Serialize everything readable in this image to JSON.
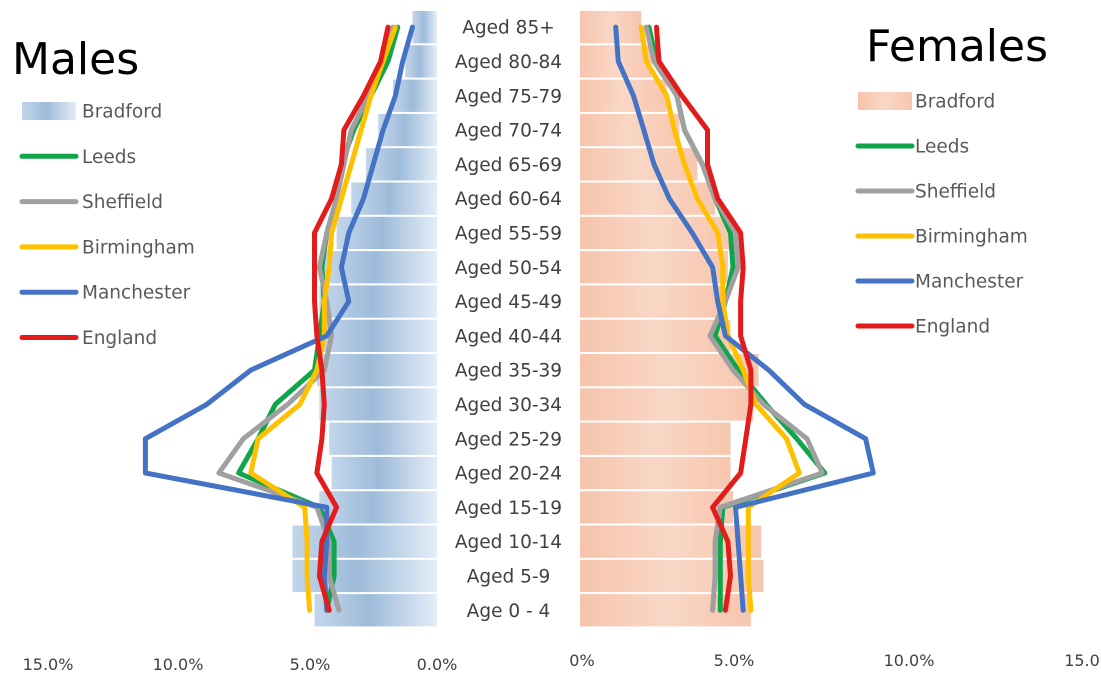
{
  "chart_data": {
    "type": "population-pyramid",
    "left_title": "Males",
    "right_title": "Females",
    "age_groups": [
      "Aged 85+",
      "Aged 80-84",
      "Aged 75-79",
      "Aged 70-74",
      "Aged 65-69",
      "Aged 60-64",
      "Aged 55-59",
      "Aged 50-54",
      "Aged 45-49",
      "Aged 40-44",
      "Aged 35-39",
      "Aged 30-34",
      "Aged 25-29",
      "Aged 20-24",
      "Aged 15-19",
      "Aged 10-14",
      "Aged 5-9",
      "Age 0 - 4"
    ],
    "left_axis": {
      "min": 0,
      "max": 15,
      "ticks": [
        "15.0%",
        "10.0%",
        "5.0%",
        "0.0%"
      ],
      "tick_values": [
        15,
        10,
        5,
        0
      ]
    },
    "right_axis": {
      "min": 0,
      "max": 15,
      "ticks": [
        "0%",
        "5.0%",
        "10.0%",
        "15.0"
      ],
      "tick_values": [
        0,
        5,
        10,
        15
      ]
    },
    "bars": {
      "name": "Bradford",
      "males": [
        1.0,
        1.3,
        1.8,
        2.4,
        2.9,
        3.5,
        4.1,
        4.6,
        4.8,
        4.8,
        4.9,
        4.8,
        4.4,
        4.3,
        4.8,
        5.9,
        5.9,
        5.0
      ],
      "females": [
        2.4,
        2.8,
        3.4,
        3.9,
        4.6,
        5.3,
        5.9,
        5.8,
        5.6,
        5.9,
        7.0,
        6.8,
        5.9,
        5.9,
        6.0,
        7.1,
        7.2,
        6.7
      ]
    },
    "series": [
      {
        "name": "Leeds",
        "color": "#10a54a",
        "males": [
          1.6,
          2.0,
          2.7,
          3.4,
          3.9,
          4.1,
          4.5,
          4.7,
          4.6,
          4.8,
          5.0,
          6.6,
          7.3,
          8.1,
          4.8,
          4.2,
          4.2,
          4.5
        ],
        "females": [
          2.7,
          3.0,
          3.8,
          4.1,
          4.8,
          5.3,
          5.9,
          6.0,
          5.7,
          5.3,
          6.2,
          7.3,
          8.5,
          9.6,
          5.6,
          5.5,
          5.5,
          5.5
        ]
      },
      {
        "name": "Sheffield",
        "color": "#a0a0a0",
        "males": [
          1.8,
          2.2,
          2.8,
          3.5,
          3.8,
          4.1,
          4.5,
          4.8,
          4.5,
          4.3,
          4.6,
          6.1,
          7.9,
          8.9,
          4.9,
          4.4,
          4.4,
          4.0
        ],
        "females": [
          2.6,
          2.9,
          3.8,
          4.1,
          4.8,
          5.3,
          6.1,
          6.2,
          5.7,
          5.1,
          6.0,
          7.2,
          8.9,
          9.5,
          5.5,
          5.3,
          5.3,
          5.2
        ]
      },
      {
        "name": "Birmingham",
        "color": "#ffc000",
        "males": [
          1.7,
          2.2,
          2.7,
          3.1,
          3.5,
          3.9,
          4.3,
          4.4,
          4.6,
          4.6,
          4.9,
          5.6,
          7.3,
          7.6,
          5.4,
          5.3,
          5.3,
          5.2
        ],
        "females": [
          2.4,
          2.6,
          3.4,
          3.7,
          4.1,
          4.6,
          5.4,
          5.6,
          5.6,
          5.8,
          6.4,
          6.9,
          8.1,
          8.6,
          6.6,
          6.6,
          6.6,
          6.7
        ]
      },
      {
        "name": "Manchester",
        "color": "#4472c4",
        "males": [
          1.0,
          1.4,
          1.7,
          2.2,
          2.6,
          3.0,
          3.6,
          3.9,
          3.6,
          4.5,
          7.6,
          9.4,
          11.9,
          11.9,
          4.5,
          4.5,
          4.6,
          4.5
        ],
        "females": [
          1.4,
          1.5,
          2.1,
          2.5,
          2.9,
          3.5,
          4.4,
          5.2,
          5.4,
          5.7,
          7.4,
          8.8,
          11.2,
          11.5,
          6.1,
          6.2,
          6.3,
          6.4
        ]
      },
      {
        "name": "England",
        "color": "#e31b1b",
        "males": [
          2.0,
          2.3,
          3.0,
          3.8,
          3.9,
          4.3,
          5.0,
          5.0,
          5.0,
          4.9,
          4.7,
          4.6,
          4.7,
          4.9,
          4.1,
          4.7,
          4.8,
          4.4
        ],
        "females": [
          3.0,
          3.1,
          4.0,
          5.0,
          5.0,
          5.4,
          6.3,
          6.4,
          6.3,
          6.3,
          6.7,
          6.7,
          6.5,
          6.3,
          5.2,
          5.8,
          5.9,
          5.7
        ]
      }
    ],
    "legend_left": "upper-left",
    "legend_right": "upper-right",
    "grid": false
  }
}
